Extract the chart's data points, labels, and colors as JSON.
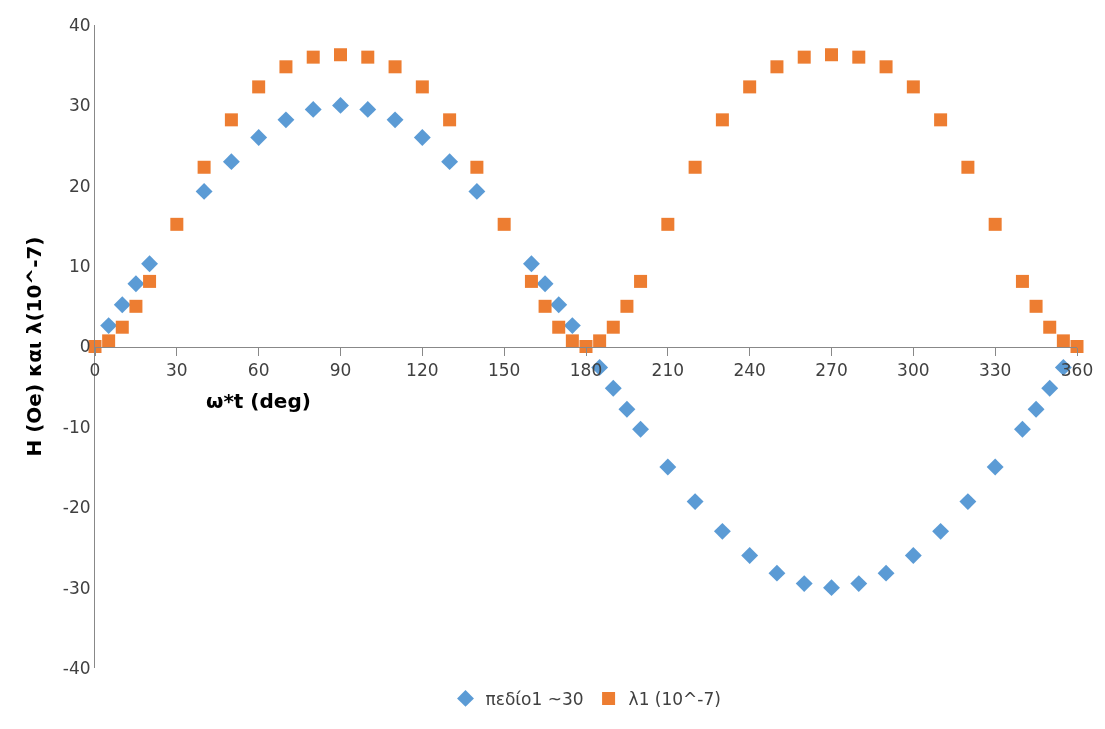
{
  "chart_data": {
    "type": "scatter",
    "xlabel": "ω*t (deg)",
    "ylabel": "H (Oe) και λ(10^-7)",
    "x": [
      0,
      5,
      10,
      15,
      20,
      30,
      40,
      50,
      60,
      70,
      80,
      90,
      100,
      110,
      120,
      130,
      140,
      150,
      160,
      165,
      170,
      175,
      180,
      185,
      190,
      195,
      200,
      210,
      220,
      230,
      240,
      250,
      260,
      270,
      280,
      290,
      300,
      310,
      320,
      330,
      340,
      345,
      350,
      355,
      360
    ],
    "series": [
      {
        "name": "πεδίο1 ~30",
        "color": "#5b9bd5",
        "marker": "diamond",
        "values": [
          null,
          2.6,
          5.2,
          7.8,
          10.3,
          null,
          19.3,
          23,
          26,
          28.2,
          29.5,
          30,
          29.5,
          28.2,
          26,
          23,
          19.3,
          null,
          10.3,
          7.8,
          5.2,
          2.6,
          null,
          -2.6,
          -5.2,
          -7.8,
          -10.3,
          -15,
          -19.3,
          -23,
          -26,
          -28.2,
          -29.5,
          -30,
          -29.5,
          -28.2,
          -26,
          -23,
          -19.3,
          -15,
          -10.3,
          -7.8,
          -5.2,
          -2.6,
          null
        ]
      },
      {
        "name": "λ1 (10^-7)",
        "color": "#ed7d31",
        "marker": "square",
        "values": [
          0,
          0.7,
          2.4,
          5,
          8.1,
          15.2,
          22.3,
          28.2,
          32.3,
          34.8,
          36,
          36.3,
          36,
          34.8,
          32.3,
          28.2,
          22.3,
          15.2,
          8.1,
          5,
          2.4,
          0.7,
          0,
          0.7,
          2.4,
          5,
          8.1,
          15.2,
          22.3,
          28.2,
          32.3,
          34.8,
          36,
          36.3,
          36,
          34.8,
          32.3,
          28.2,
          22.3,
          15.2,
          8.1,
          5,
          2.4,
          0.7,
          0
        ]
      }
    ],
    "xlim": [
      0,
      360
    ],
    "xticks": [
      0,
      30,
      60,
      90,
      120,
      150,
      180,
      210,
      240,
      270,
      300,
      330,
      360
    ],
    "ylim": [
      -40,
      40
    ],
    "yticks": [
      -40,
      -30,
      -20,
      -10,
      0,
      10,
      20,
      30,
      40
    ],
    "legend": "bottom"
  }
}
